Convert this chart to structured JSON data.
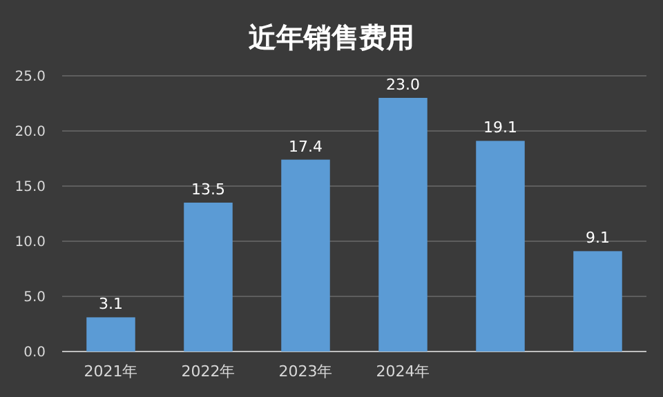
{
  "chart_data": {
    "type": "bar",
    "title": "近年销售费用",
    "categories": [
      "2021年",
      "2022年",
      "2023年",
      "2024年",
      null,
      null
    ],
    "values": [
      3.1,
      13.5,
      17.4,
      23.0,
      19.1,
      9.1
    ],
    "value_labels": [
      "3.1",
      "13.5",
      "17.4",
      "23.0",
      "19.1",
      "9.1"
    ],
    "color": "#5b9bd5",
    "ylim": [
      0,
      25
    ],
    "yticks": [
      {
        "value": 0,
        "label": "0.0"
      },
      {
        "value": 5,
        "label": "5.0"
      },
      {
        "value": 10,
        "label": "10.0"
      },
      {
        "value": 15,
        "label": "15.0"
      },
      {
        "value": 20,
        "label": "20.0"
      },
      {
        "value": 25,
        "label": "25.0"
      }
    ],
    "grid": "y"
  }
}
